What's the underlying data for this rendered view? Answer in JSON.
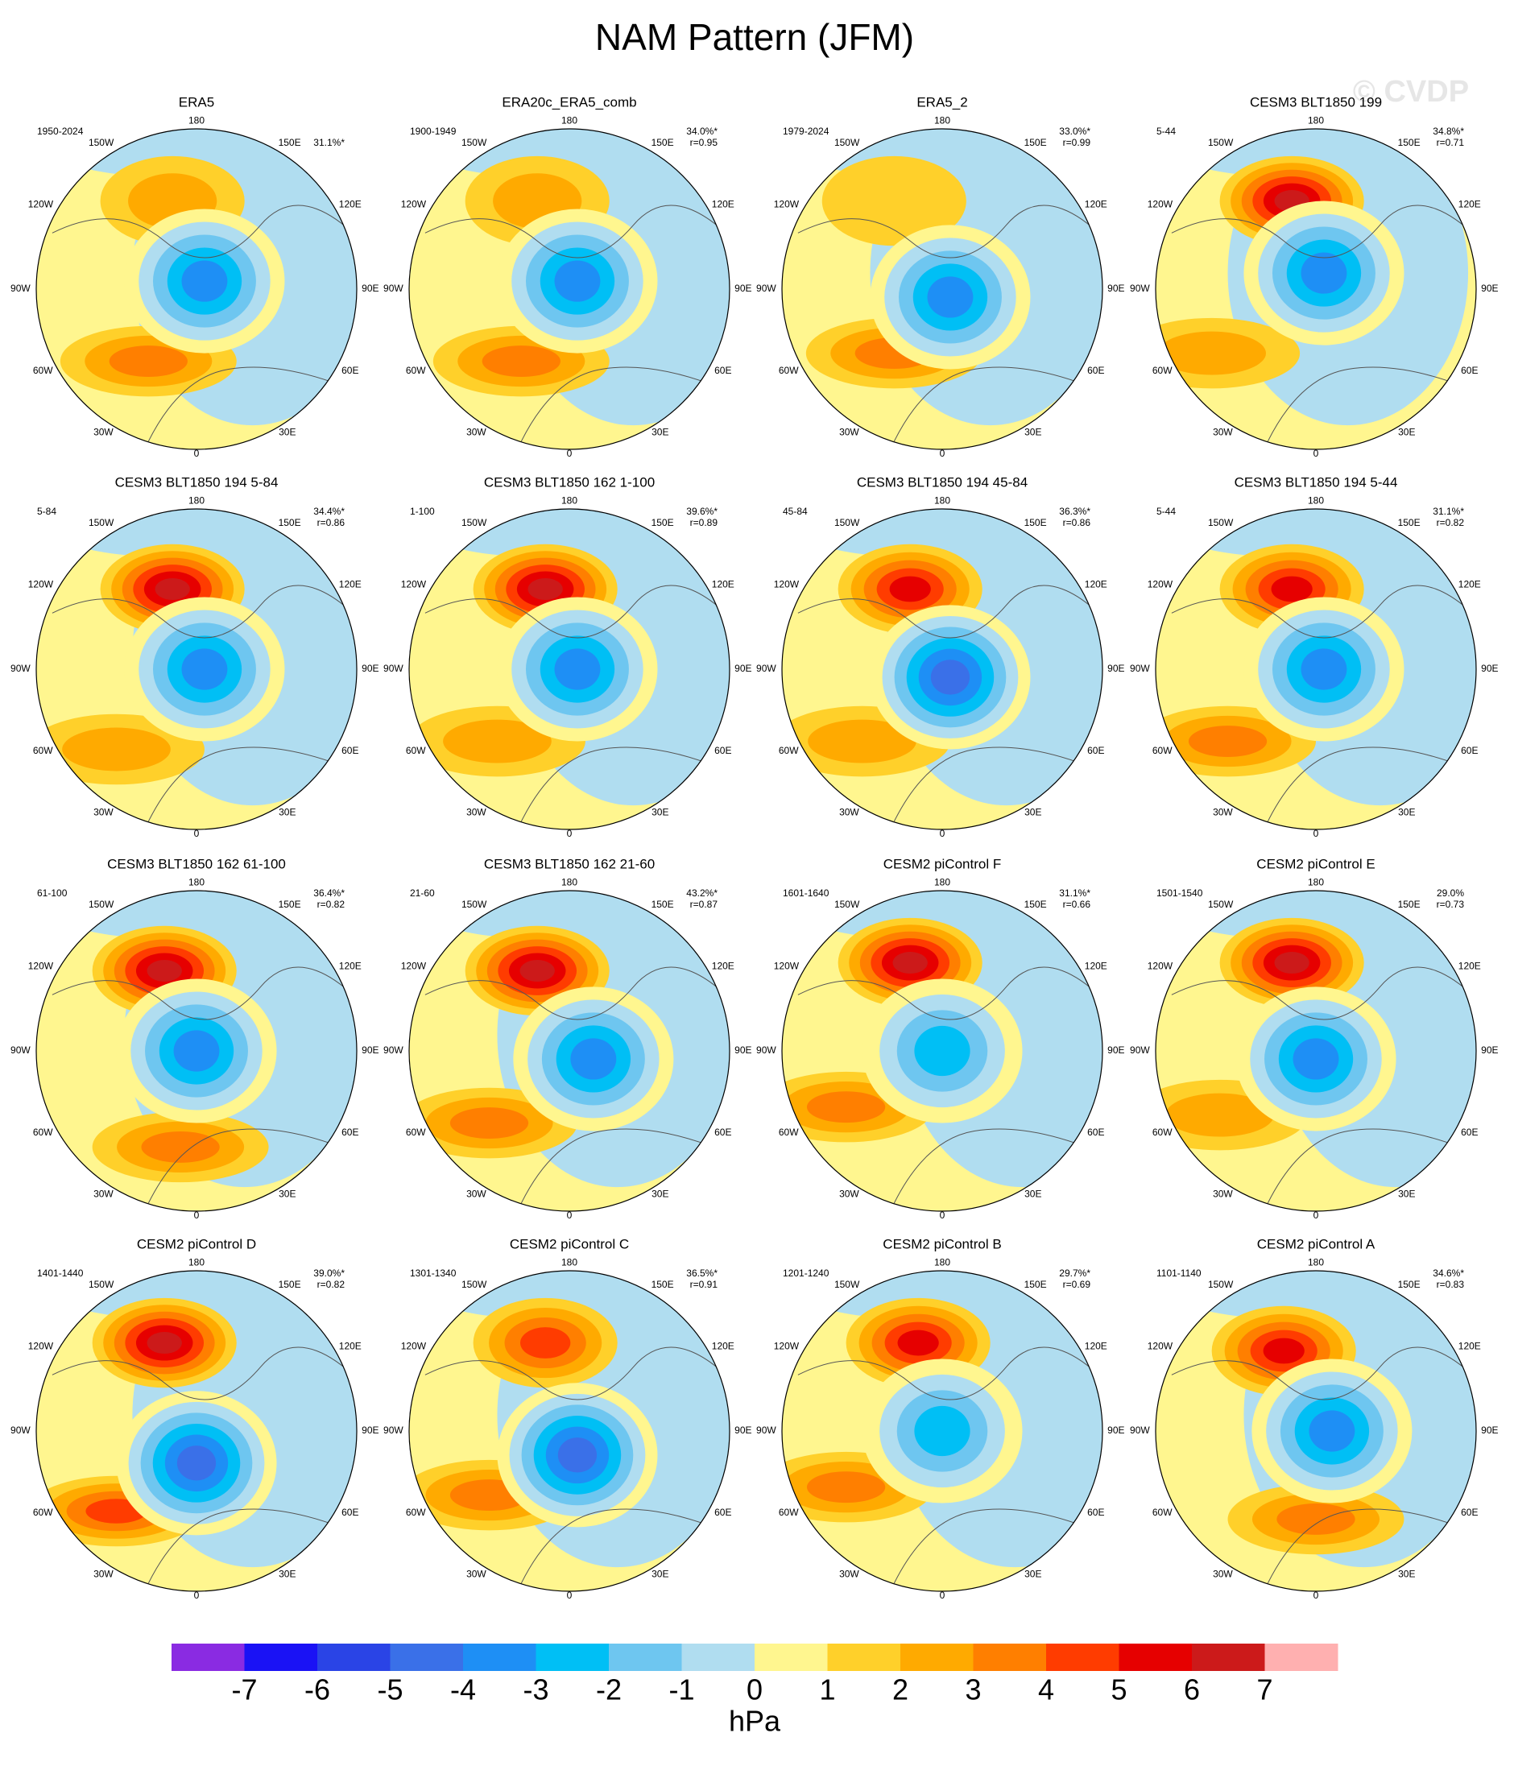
{
  "title": "NAM Pattern (JFM)",
  "watermark": "© CVDP",
  "lon_labels": {
    "n": "180",
    "nw": "150W",
    "ne": "150E",
    "w120": "120W",
    "e120": "120E",
    "w90": "90W",
    "e90": "90E",
    "w60": "60W",
    "e60": "60E",
    "w30": "30W",
    "e30": "30E",
    "s": "0"
  },
  "panels": [
    {
      "title": "ERA5",
      "period": "1950-2024",
      "pct": "31.1%*"
    },
    {
      "title": "ERA20c_ERA5_comb",
      "period": "1900-1949",
      "pct": "34.0%*",
      "r": "r=0.95"
    },
    {
      "title": "ERA5_2",
      "period": "1979-2024",
      "pct": "33.0%*",
      "r": "r=0.99"
    },
    {
      "title": "CESM3 BLT1850 199",
      "period": "5-44",
      "pct": "34.8%*",
      "r": "r=0.71"
    },
    {
      "title": "CESM3 BLT1850 194 5-84",
      "period": "5-84",
      "pct": "34.4%*",
      "r": "r=0.86"
    },
    {
      "title": "CESM3 BLT1850 162 1-100",
      "period": "1-100",
      "pct": "39.6%*",
      "r": "r=0.89"
    },
    {
      "title": "CESM3 BLT1850 194 45-84",
      "period": "45-84",
      "pct": "36.3%*",
      "r": "r=0.86"
    },
    {
      "title": "CESM3 BLT1850 194 5-44",
      "period": "5-44",
      "pct": "31.1%*",
      "r": "r=0.82"
    },
    {
      "title": "CESM3 BLT1850 162 61-100",
      "period": "61-100",
      "pct": "36.4%*",
      "r": "r=0.82"
    },
    {
      "title": "CESM3 BLT1850 162 21-60",
      "period": "21-60",
      "pct": "43.2%*",
      "r": "r=0.87"
    },
    {
      "title": "CESM2 piControl F",
      "period": "1601-1640",
      "pct": "31.1%*",
      "r": "r=0.66"
    },
    {
      "title": "CESM2 piControl E",
      "period": "1501-1540",
      "pct": "29.0%",
      "r": "r=0.73"
    },
    {
      "title": "CESM2 piControl D",
      "period": "1401-1440",
      "pct": "39.0%*",
      "r": "r=0.82"
    },
    {
      "title": "CESM2 piControl C",
      "period": "1301-1340",
      "pct": "36.5%*",
      "r": "r=0.91"
    },
    {
      "title": "CESM2 piControl B",
      "period": "1201-1240",
      "pct": "29.7%*",
      "r": "r=0.69"
    },
    {
      "title": "CESM2 piControl A",
      "period": "1101-1140",
      "pct": "34.6%*",
      "r": "r=0.83"
    }
  ],
  "colorbar": {
    "colors": [
      "#8a2be2",
      "#1a12f5",
      "#2a44e6",
      "#3a70e8",
      "#1e8ff5",
      "#00bff5",
      "#6ec6f0",
      "#b0ddf0",
      "#fff68f",
      "#ffd02a",
      "#ffaa00",
      "#ff7f00",
      "#ff3c00",
      "#e60000",
      "#cc1a1a",
      "#ffb0b0"
    ],
    "ticks": [
      -7,
      -6,
      -5,
      -4,
      -3,
      -2,
      -1,
      0,
      1,
      2,
      3,
      4,
      5,
      6,
      7
    ],
    "label": "hPa"
  }
}
